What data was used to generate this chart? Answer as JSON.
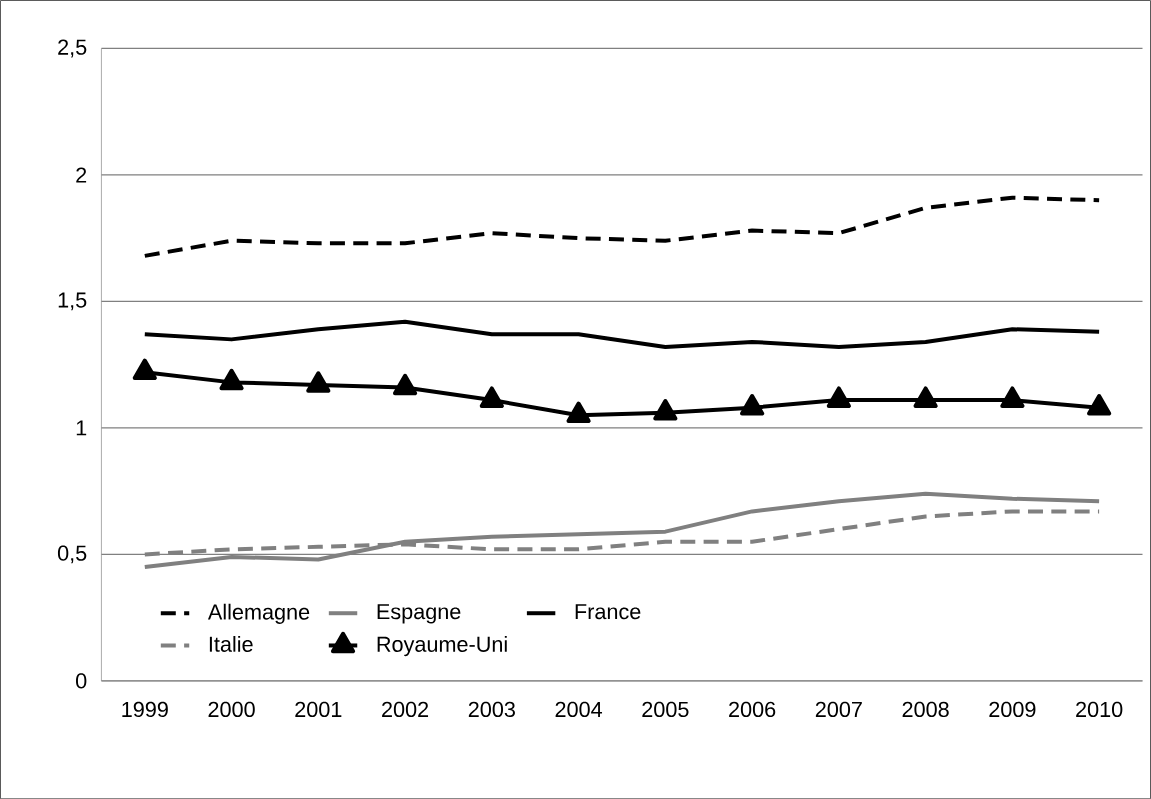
{
  "chart_data": {
    "type": "line",
    "categories": [
      "1999",
      "2000",
      "2001",
      "2002",
      "2003",
      "2004",
      "2005",
      "2006",
      "2007",
      "2008",
      "2009",
      "2010"
    ],
    "series": [
      {
        "name": "Allemagne",
        "color": "#000000",
        "line_style": "dashed",
        "marker": "none",
        "values": [
          1.68,
          1.74,
          1.73,
          1.73,
          1.77,
          1.75,
          1.74,
          1.78,
          1.77,
          1.87,
          1.91,
          1.9
        ]
      },
      {
        "name": "Espagne",
        "color": "#808080",
        "line_style": "solid",
        "marker": "none",
        "values": [
          0.45,
          0.49,
          0.48,
          0.55,
          0.57,
          0.58,
          0.59,
          0.67,
          0.71,
          0.74,
          0.72,
          0.71
        ]
      },
      {
        "name": "France",
        "color": "#000000",
        "line_style": "solid",
        "marker": "none",
        "values": [
          1.37,
          1.35,
          1.39,
          1.42,
          1.37,
          1.37,
          1.32,
          1.34,
          1.32,
          1.34,
          1.39,
          1.38
        ]
      },
      {
        "name": "Italie",
        "color": "#808080",
        "line_style": "dashed",
        "marker": "none",
        "values": [
          0.5,
          0.52,
          0.53,
          0.54,
          0.52,
          0.52,
          0.55,
          0.55,
          0.6,
          0.65,
          0.67,
          0.67
        ]
      },
      {
        "name": "Royaume-Uni",
        "color": "#000000",
        "line_style": "solid",
        "marker": "triangle",
        "values": [
          1.22,
          1.18,
          1.17,
          1.16,
          1.11,
          1.05,
          1.06,
          1.08,
          1.11,
          1.11,
          1.11,
          1.08
        ]
      }
    ],
    "ylim": [
      0,
      2.5
    ],
    "yticks": [
      0,
      {
        "value": 0.5,
        "label": "0,5"
      },
      1,
      {
        "value": 1.5,
        "label": "1,5"
      },
      2,
      {
        "value": 2.5,
        "label": "2,5"
      }
    ],
    "grid": "y",
    "legend": "bottom left"
  }
}
